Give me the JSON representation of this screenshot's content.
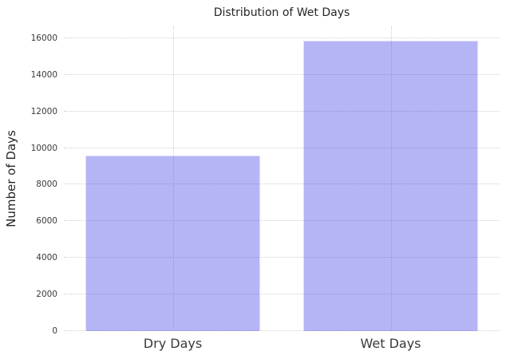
{
  "chart_data": {
    "type": "bar",
    "title": "Distribution of Wet Days",
    "xlabel": "",
    "ylabel": "Number of Days",
    "categories": [
      "Dry Days",
      "Wet Days"
    ],
    "values": [
      9570,
      15850
    ],
    "yticks": [
      0,
      2000,
      4000,
      6000,
      8000,
      10000,
      12000,
      14000,
      16000
    ],
    "ylim": [
      0,
      16650
    ],
    "grid": "dotted horizontal lines at each y-tick and dotted vertical lines at category centers",
    "legend": "none",
    "colors": {
      "background": "#ffffff",
      "bar_fill": "rgba(60,60,228,0.38)",
      "bar_fill_apparent_hex": "#b1b2f4",
      "bar_edge": "rgba(255,255,255,0.55)",
      "grid_color": "#cfcfcf",
      "title_text": "#262626",
      "tick_text": "#3a3a3a"
    }
  }
}
